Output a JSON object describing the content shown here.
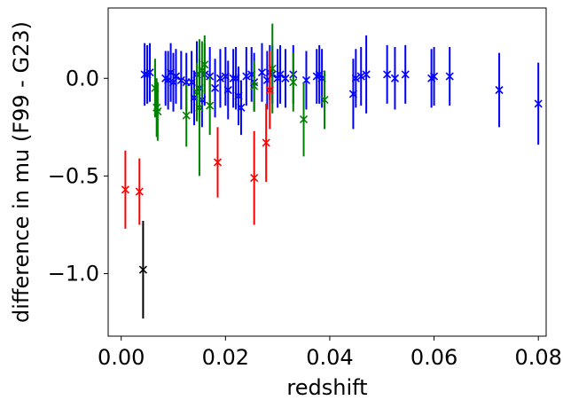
{
  "chart_data": {
    "type": "scatter",
    "xlabel": "redshift",
    "ylabel": "difference in mu (F99 - G23)",
    "xlim": [
      -0.0025,
      0.0815
    ],
    "ylim": [
      -1.32,
      0.36
    ],
    "xticks": [
      0.0,
      0.02,
      0.04,
      0.06,
      0.08
    ],
    "xtick_labels": [
      "0.00",
      "0.02",
      "0.04",
      "0.06",
      "0.08"
    ],
    "yticks": [
      0.0,
      -0.5,
      -1.0
    ],
    "ytick_labels": [
      "0.0",
      "−0.5",
      "−1.0"
    ],
    "grid": false,
    "marker": "x",
    "series": [
      {
        "color": "#0000ff",
        "points": [
          {
            "x": 0.0045,
            "y": 0.02,
            "err": 0.16
          },
          {
            "x": 0.005,
            "y": 0.02,
            "err": 0.15
          },
          {
            "x": 0.0055,
            "y": 0.03,
            "err": 0.15
          },
          {
            "x": 0.0085,
            "y": 0.0,
            "err": 0.14
          },
          {
            "x": 0.009,
            "y": -0.01,
            "err": 0.15
          },
          {
            "x": 0.0095,
            "y": 0.03,
            "err": 0.15
          },
          {
            "x": 0.01,
            "y": -0.02,
            "err": 0.15
          },
          {
            "x": 0.0105,
            "y": 0.01,
            "err": 0.14
          },
          {
            "x": 0.0115,
            "y": -0.01,
            "err": 0.15
          },
          {
            "x": 0.0125,
            "y": -0.02,
            "err": 0.15
          },
          {
            "x": 0.0135,
            "y": -0.02,
            "err": 0.16
          },
          {
            "x": 0.014,
            "y": -0.1,
            "err": 0.14
          },
          {
            "x": 0.0145,
            "y": 0.02,
            "err": 0.17
          },
          {
            "x": 0.015,
            "y": -0.05,
            "err": 0.15
          },
          {
            "x": 0.0155,
            "y": -0.11,
            "err": 0.14
          },
          {
            "x": 0.016,
            "y": 0.02,
            "err": 0.16
          },
          {
            "x": 0.017,
            "y": 0.01,
            "err": 0.15
          },
          {
            "x": 0.018,
            "y": -0.05,
            "err": 0.15
          },
          {
            "x": 0.019,
            "y": 0.0,
            "err": 0.15
          },
          {
            "x": 0.02,
            "y": 0.01,
            "err": 0.15
          },
          {
            "x": 0.0205,
            "y": -0.06,
            "err": 0.15
          },
          {
            "x": 0.0215,
            "y": 0.0,
            "err": 0.15
          },
          {
            "x": 0.022,
            "y": 0.0,
            "err": 0.16
          },
          {
            "x": 0.0225,
            "y": -0.09,
            "err": 0.15
          },
          {
            "x": 0.023,
            "y": -0.15,
            "err": 0.14
          },
          {
            "x": 0.024,
            "y": 0.01,
            "err": 0.15
          },
          {
            "x": 0.025,
            "y": 0.02,
            "err": 0.14
          },
          {
            "x": 0.0255,
            "y": -0.02,
            "err": 0.15
          },
          {
            "x": 0.027,
            "y": 0.03,
            "err": 0.15
          },
          {
            "x": 0.028,
            "y": -0.01,
            "err": 0.15
          },
          {
            "x": 0.0285,
            "y": 0.03,
            "err": 0.14
          },
          {
            "x": 0.029,
            "y": 0.02,
            "err": 0.15
          },
          {
            "x": 0.03,
            "y": 0.0,
            "err": 0.15
          },
          {
            "x": 0.0305,
            "y": 0.02,
            "err": 0.15
          },
          {
            "x": 0.0315,
            "y": 0.0,
            "err": 0.15
          },
          {
            "x": 0.033,
            "y": 0.02,
            "err": 0.15
          },
          {
            "x": 0.0355,
            "y": -0.01,
            "err": 0.15
          },
          {
            "x": 0.0375,
            "y": 0.01,
            "err": 0.14
          },
          {
            "x": 0.038,
            "y": 0.02,
            "err": 0.15
          },
          {
            "x": 0.0385,
            "y": 0.0,
            "err": 0.15
          },
          {
            "x": 0.0445,
            "y": -0.08,
            "err": 0.18
          },
          {
            "x": 0.045,
            "y": 0.0,
            "err": 0.15
          },
          {
            "x": 0.046,
            "y": 0.01,
            "err": 0.15
          },
          {
            "x": 0.047,
            "y": 0.02,
            "err": 0.2
          },
          {
            "x": 0.051,
            "y": 0.02,
            "err": 0.15
          },
          {
            "x": 0.0525,
            "y": 0.0,
            "err": 0.16
          },
          {
            "x": 0.0545,
            "y": 0.02,
            "err": 0.15
          },
          {
            "x": 0.0595,
            "y": 0.0,
            "err": 0.15
          },
          {
            "x": 0.06,
            "y": 0.01,
            "err": 0.15
          },
          {
            "x": 0.063,
            "y": 0.01,
            "err": 0.15
          },
          {
            "x": 0.0725,
            "y": -0.06,
            "err": 0.19
          },
          {
            "x": 0.08,
            "y": -0.13,
            "err": 0.21
          }
        ]
      },
      {
        "color": "#008000",
        "points": [
          {
            "x": 0.0065,
            "y": -0.05,
            "err": 0.15
          },
          {
            "x": 0.0068,
            "y": -0.15,
            "err": 0.15
          },
          {
            "x": 0.007,
            "y": -0.17,
            "err": 0.15
          },
          {
            "x": 0.0125,
            "y": -0.19,
            "err": 0.16
          },
          {
            "x": 0.0145,
            "y": -0.07,
            "err": 0.15
          },
          {
            "x": 0.015,
            "y": -0.15,
            "err": 0.35
          },
          {
            "x": 0.0155,
            "y": 0.04,
            "err": 0.15
          },
          {
            "x": 0.016,
            "y": 0.07,
            "err": 0.15
          },
          {
            "x": 0.017,
            "y": -0.14,
            "err": 0.15
          },
          {
            "x": 0.0255,
            "y": -0.04,
            "err": 0.13
          },
          {
            "x": 0.029,
            "y": 0.05,
            "err": 0.23
          },
          {
            "x": 0.033,
            "y": -0.02,
            "err": 0.15
          },
          {
            "x": 0.035,
            "y": -0.21,
            "err": 0.19
          },
          {
            "x": 0.039,
            "y": -0.11,
            "err": 0.15
          }
        ]
      },
      {
        "color": "#ff0000",
        "points": [
          {
            "x": 0.0008,
            "y": -0.57,
            "err": 0.2
          },
          {
            "x": 0.0035,
            "y": -0.58,
            "err": 0.17
          },
          {
            "x": 0.0185,
            "y": -0.43,
            "err": 0.18
          },
          {
            "x": 0.0255,
            "y": -0.51,
            "err": 0.24
          },
          {
            "x": 0.0278,
            "y": -0.33,
            "err": 0.2
          },
          {
            "x": 0.0285,
            "y": -0.06,
            "err": 0.2
          }
        ]
      },
      {
        "color": "#000000",
        "points": [
          {
            "x": 0.0042,
            "y": -0.98,
            "err": 0.25
          }
        ]
      }
    ]
  }
}
